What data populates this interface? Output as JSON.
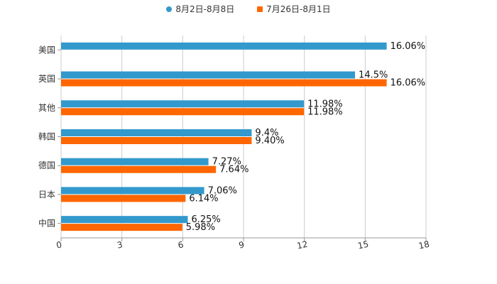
{
  "chart_data": {
    "type": "bar",
    "orientation": "horizontal",
    "title": "",
    "xlabel": "",
    "ylabel": "",
    "xlim": [
      0,
      18
    ],
    "x_ticks": [
      0,
      3,
      6,
      9,
      12,
      15,
      18
    ],
    "x_tick_labels": [
      "0",
      "3",
      "6",
      "9",
      "12",
      "15",
      "18"
    ],
    "grid": true,
    "legend_position": "top-center",
    "categories": [
      "美国",
      "英国",
      "其他",
      "韩国",
      "德国",
      "日本",
      "中国"
    ],
    "series": [
      {
        "name": "8月2日-8月8日",
        "color": "#3399cc",
        "marker": "circle",
        "values": [
          16.06,
          14.5,
          11.98,
          9.4,
          7.27,
          7.06,
          6.25
        ],
        "labels": [
          "16.06%",
          "14.5%",
          "11.98%",
          "9.4%",
          "7.27%",
          "7.06%",
          "6.25%"
        ]
      },
      {
        "name": "7月26日-8月1日",
        "color": "#ff6600",
        "marker": "square",
        "values": [
          null,
          16.06,
          11.98,
          9.4,
          7.64,
          6.14,
          5.98
        ],
        "labels": [
          null,
          "16.06%",
          "11.98%",
          "9.40%",
          "7.64%",
          "6.14%",
          "5.98%"
        ]
      }
    ]
  }
}
